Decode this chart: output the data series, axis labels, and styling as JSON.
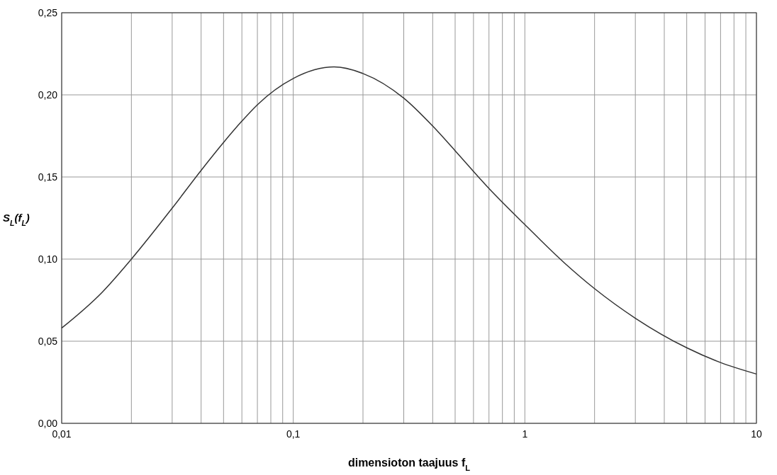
{
  "chart_data": {
    "type": "line",
    "xlabel": "dimensioton taajuus f$_{L}$",
    "ylabel": "S$_{L}$(f$_{L}$)",
    "log": "x",
    "grid": true,
    "marker": "none",
    "line_style": "solid",
    "x": [
      0.01,
      0.015,
      0.02,
      0.03,
      0.04,
      0.05,
      0.06,
      0.07,
      0.1,
      0.15,
      0.2,
      0.3,
      0.4,
      0.5,
      0.7,
      1,
      1.5,
      2,
      3,
      5,
      7,
      10
    ],
    "series": [
      {
        "color": "#333333",
        "values": [
          0.058,
          0.08,
          0.1,
          0.131,
          0.154,
          0.171,
          0.184,
          0.194,
          0.21,
          0.217,
          0.213,
          0.198,
          0.181,
          0.166,
          0.143,
          0.121,
          0.097,
          0.082,
          0.064,
          0.046,
          0.037,
          0.03
        ]
      }
    ],
    "xlim": [
      0.01,
      10
    ],
    "ylim": [
      0,
      0.25
    ],
    "xticks": [
      {
        "value": 0.01,
        "label": "0,01"
      },
      {
        "value": 0.02,
        "label": null
      },
      {
        "value": 0.03,
        "label": null
      },
      {
        "value": 0.04,
        "label": null
      },
      {
        "value": 0.05,
        "label": null
      },
      {
        "value": 0.06,
        "label": null
      },
      {
        "value": 0.07,
        "label": null
      },
      {
        "value": 0.08,
        "label": null
      },
      {
        "value": 0.09,
        "label": null
      },
      {
        "value": 0.1,
        "label": "0,1"
      },
      {
        "value": 0.2,
        "label": null
      },
      {
        "value": 0.3,
        "label": null
      },
      {
        "value": 0.4,
        "label": null
      },
      {
        "value": 0.5,
        "label": null
      },
      {
        "value": 0.6,
        "label": null
      },
      {
        "value": 0.7,
        "label": null
      },
      {
        "value": 0.8,
        "label": null
      },
      {
        "value": 0.9,
        "label": null
      },
      {
        "value": 1,
        "label": "1"
      },
      {
        "value": 2,
        "label": null
      },
      {
        "value": 3,
        "label": null
      },
      {
        "value": 4,
        "label": null
      },
      {
        "value": 5,
        "label": null
      },
      {
        "value": 6,
        "label": null
      },
      {
        "value": 7,
        "label": null
      },
      {
        "value": 8,
        "label": null
      },
      {
        "value": 9,
        "label": null
      },
      {
        "value": 10,
        "label": "10"
      }
    ],
    "yticks": [
      {
        "value": 0,
        "label": "0,00"
      },
      {
        "value": 0.05,
        "label": "0,05"
      },
      {
        "value": 0.1,
        "label": "0,10"
      },
      {
        "value": 0.15,
        "label": "0,15"
      },
      {
        "value": 0.2,
        "label": "0,20"
      },
      {
        "value": 0.25,
        "label": "0,25"
      }
    ]
  }
}
